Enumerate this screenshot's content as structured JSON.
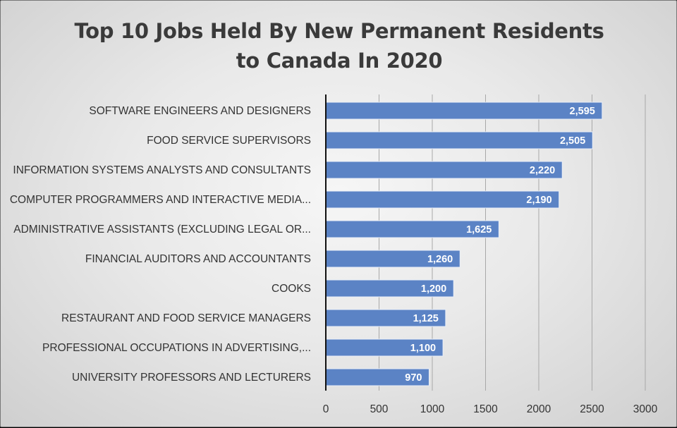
{
  "chart_data": {
    "type": "bar",
    "orientation": "horizontal",
    "title_lines": [
      "Top 10 Jobs Held By New Permanent Residents",
      "to Canada In 2020"
    ],
    "categories": [
      "SOFTWARE ENGINEERS AND DESIGNERS",
      "FOOD SERVICE SUPERVISORS",
      "INFORMATION SYSTEMS ANALYSTS AND CONSULTANTS",
      "COMPUTER PROGRAMMERS AND INTERACTIVE MEDIA...",
      "ADMINISTRATIVE ASSISTANTS (EXCLUDING LEGAL OR...",
      "FINANCIAL AUDITORS AND ACCOUNTANTS",
      "COOKS",
      "RESTAURANT AND FOOD SERVICE MANAGERS",
      "PROFESSIONAL OCCUPATIONS IN ADVERTISING,...",
      "UNIVERSITY PROFESSORS AND LECTURERS"
    ],
    "values": [
      2595,
      2505,
      2220,
      2190,
      1625,
      1260,
      1200,
      1125,
      1100,
      970
    ],
    "value_labels": [
      "2,595",
      "2,505",
      "2,220",
      "2,190",
      "1,625",
      "1,260",
      "1,200",
      "1,125",
      "1,100",
      "970"
    ],
    "xlim": [
      0,
      3000
    ],
    "xticks": [
      0,
      500,
      1000,
      1500,
      2000,
      2500,
      3000
    ],
    "xtick_labels": [
      "0",
      "500",
      "1000",
      "1500",
      "2000",
      "2500",
      "3000"
    ],
    "grid": "vertical",
    "bar_color": "#5b83c5",
    "bar_border_color": "#e8eef8",
    "legend": "none"
  }
}
